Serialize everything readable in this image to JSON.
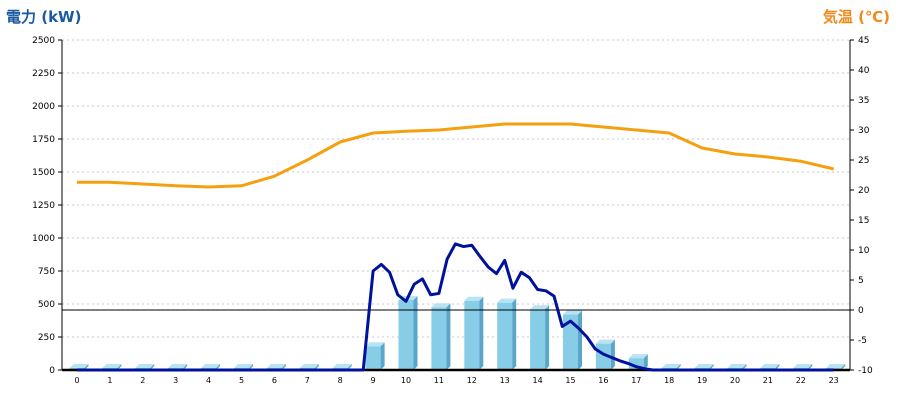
{
  "chart_data": {
    "type": "bar+line",
    "ylabel_left": "電力 (kW)",
    "ylabel_right": "気温 (℃)",
    "x": [
      0,
      1,
      2,
      3,
      4,
      5,
      6,
      7,
      8,
      9,
      10,
      11,
      12,
      13,
      14,
      15,
      16,
      17,
      18,
      19,
      20,
      21,
      22,
      23
    ],
    "y_left_ticks": [
      0,
      250,
      500,
      750,
      1000,
      1250,
      1500,
      1750,
      2000,
      2250,
      2500
    ],
    "y_right_ticks": [
      -10,
      -5,
      0,
      5,
      10,
      15,
      20,
      25,
      30,
      35,
      40,
      45
    ],
    "ylim_left": [
      0,
      2500
    ],
    "ylim_right": [
      -10,
      45
    ],
    "grid": true,
    "bar_series": {
      "color": "#87cde8",
      "values": [
        15,
        15,
        15,
        15,
        15,
        15,
        15,
        15,
        15,
        180,
        530,
        475,
        525,
        510,
        460,
        420,
        200,
        90,
        15,
        15,
        15,
        15,
        15,
        15
      ]
    },
    "line_series": [
      {
        "color": "#f5a00f",
        "axis": "right",
        "values": [
          21.3,
          21.3,
          21.0,
          20.7,
          20.5,
          20.7,
          22.3,
          25.0,
          28.0,
          29.5,
          29.8,
          30.0,
          30.5,
          31.0,
          31.0,
          31.0,
          30.5,
          30.0,
          29.5,
          27.0,
          26.0,
          25.5,
          24.8,
          23.5
        ]
      },
      {
        "color": "#00129a",
        "axis": "left",
        "x": [
          0,
          1,
          2,
          3,
          4,
          5,
          6,
          7,
          8,
          8.7,
          9,
          9.25,
          9.5,
          9.75,
          10,
          10.25,
          10.5,
          10.75,
          11,
          11.25,
          11.5,
          11.75,
          12,
          12.25,
          12.5,
          12.75,
          13,
          13.25,
          13.5,
          13.75,
          14,
          14.25,
          14.5,
          14.75,
          15,
          15.25,
          15.5,
          15.75,
          16,
          16.25,
          16.5,
          16.75,
          17,
          17.25,
          17.5,
          17.75,
          18,
          19,
          20,
          21,
          22,
          23
        ],
        "values": [
          0,
          0,
          0,
          0,
          0,
          0,
          0,
          0,
          0,
          0,
          750,
          800,
          740,
          570,
          520,
          650,
          690,
          570,
          580,
          840,
          955,
          935,
          945,
          860,
          780,
          730,
          830,
          620,
          740,
          700,
          610,
          600,
          560,
          330,
          370,
          315,
          250,
          160,
          120,
          95,
          70,
          50,
          25,
          10,
          0,
          0,
          0,
          0,
          0,
          0,
          0,
          0
        ]
      }
    ]
  }
}
